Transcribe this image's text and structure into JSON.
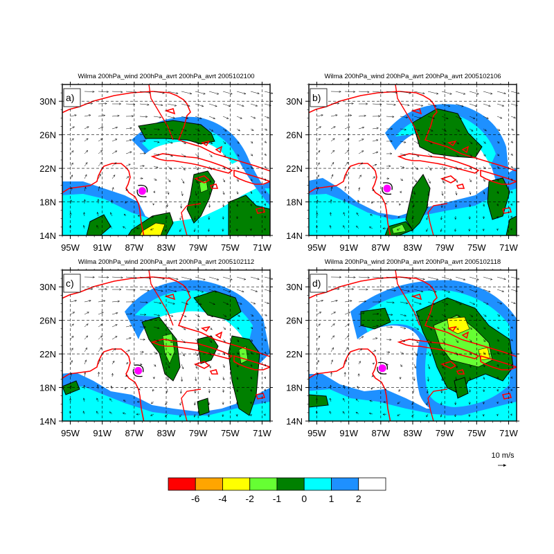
{
  "panels": [
    {
      "id": "a",
      "label": "a)",
      "title": "Wilma 200hPa_wind 200hPa_avrt 200hPa_avrt 2005102100",
      "storm": {
        "lon": -86.0,
        "lat": 19.3
      }
    },
    {
      "id": "b",
      "label": "b)",
      "title": "Wilma 200hPa_wind 200hPa_avrt 200hPa_avrt 2005102106",
      "storm": {
        "lon": -86.2,
        "lat": 19.6
      }
    },
    {
      "id": "c",
      "label": "c)",
      "title": "Wilma 200hPa_wind 200hPa_avrt 200hPa_avrt 2005102112",
      "storm": {
        "lon": -86.5,
        "lat": 20.0
      }
    },
    {
      "id": "d",
      "label": "d)",
      "title": "Wilma 200hPa_wind 200hPa_avrt 200hPa_avrt 2005102118",
      "storm": {
        "lon": -86.8,
        "lat": 20.3
      }
    }
  ],
  "axes": {
    "lon_range": [
      -96,
      -70
    ],
    "lat_range": [
      14,
      32
    ],
    "x_ticks": [
      -95,
      -91,
      -87,
      -83,
      -79,
      -75,
      -71
    ],
    "x_tick_labels": [
      "95W",
      "91W",
      "87W",
      "83W",
      "79W",
      "75W",
      "71W"
    ],
    "y_ticks": [
      14,
      18,
      22,
      26,
      30
    ],
    "y_tick_labels": [
      "14N",
      "18N",
      "22N",
      "26N",
      "30N"
    ],
    "grid_dashed": true
  },
  "colorbar": {
    "colors": [
      "#ff0000",
      "#ffa500",
      "#ffff00",
      "#66ff33",
      "#008000",
      "#00ffff",
      "#1e90ff",
      "#ffffff"
    ],
    "labels": [
      "-6",
      "-4",
      "-2",
      "-1",
      "0",
      "1",
      "2"
    ]
  },
  "reference_vector": {
    "label": "10 m/s"
  },
  "colors": {
    "coastline": "#ff0000",
    "storm_marker": "#ff00ff",
    "vector": "#000000"
  }
}
